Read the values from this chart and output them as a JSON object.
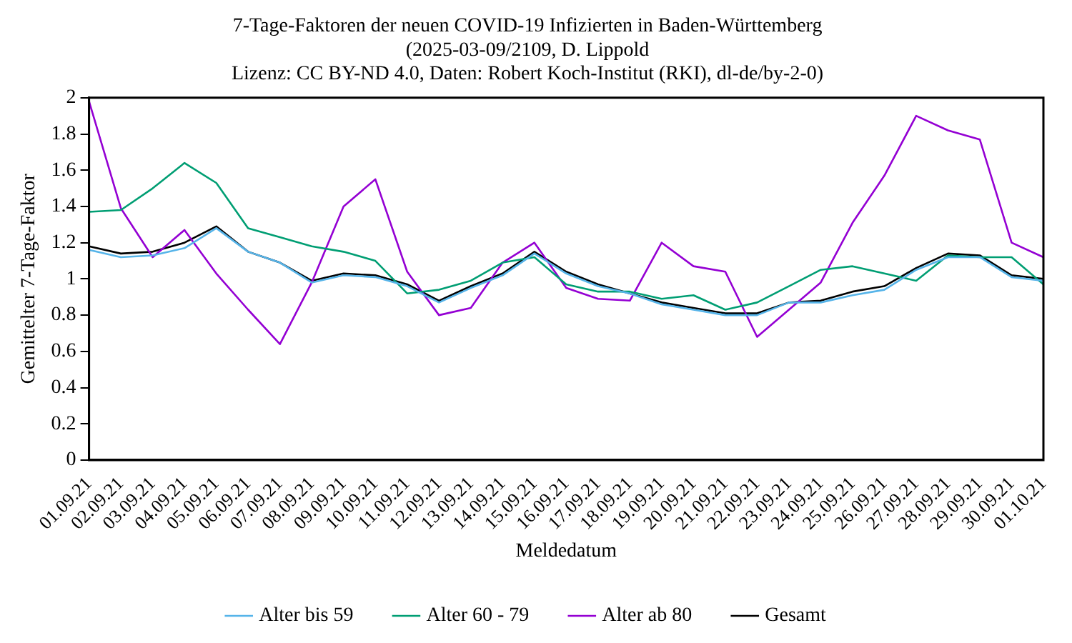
{
  "chart_data": {
    "type": "line",
    "title": [
      "7-Tage-Faktoren der neuen COVID-19 Infizierten in Baden-Württemberg",
      "(2025-03-09/2109, D. Lippold",
      "Lizenz: CC BY-ND 4.0, Daten: Robert Koch-Institut (RKI), dl-de/by-2-0)"
    ],
    "xlabel": "Meldedatum",
    "ylabel": "Gemittelter 7-Tage-Faktor",
    "categories": [
      "01.09.21",
      "02.09.21",
      "03.09.21",
      "04.09.21",
      "05.09.21",
      "06.09.21",
      "07.09.21",
      "08.09.21",
      "09.09.21",
      "10.09.21",
      "11.09.21",
      "12.09.21",
      "13.09.21",
      "14.09.21",
      "15.09.21",
      "16.09.21",
      "17.09.21",
      "18.09.21",
      "19.09.21",
      "20.09.21",
      "21.09.21",
      "22.09.21",
      "23.09.21",
      "24.09.21",
      "25.09.21",
      "26.09.21",
      "27.09.21",
      "28.09.21",
      "29.09.21",
      "30.09.21",
      "01.10.21"
    ],
    "series": [
      {
        "name": "Alter bis 59",
        "color": "#56b4e9",
        "values": [
          1.16,
          1.12,
          1.13,
          1.17,
          1.28,
          1.15,
          1.09,
          0.98,
          1.02,
          1.01,
          0.96,
          0.87,
          0.95,
          1.02,
          1.14,
          1.03,
          0.96,
          0.92,
          0.86,
          0.83,
          0.8,
          0.8,
          0.87,
          0.87,
          0.91,
          0.94,
          1.05,
          1.12,
          1.12,
          1.01,
          0.99
        ]
      },
      {
        "name": "Alter 60 - 79",
        "color": "#009e73",
        "values": [
          1.37,
          1.38,
          1.5,
          1.64,
          1.53,
          1.28,
          1.23,
          1.18,
          1.15,
          1.1,
          0.92,
          0.94,
          0.99,
          1.09,
          1.12,
          0.97,
          0.93,
          0.93,
          0.89,
          0.91,
          0.83,
          0.87,
          0.96,
          1.05,
          1.07,
          1.03,
          0.99,
          1.13,
          1.12,
          1.12,
          0.97
        ]
      },
      {
        "name": "Alter ab 80",
        "color": "#9400d3",
        "values": [
          1.98,
          1.39,
          1.12,
          1.27,
          1.03,
          0.83,
          0.64,
          0.98,
          1.4,
          1.55,
          1.04,
          0.8,
          0.84,
          1.09,
          1.2,
          0.95,
          0.89,
          0.88,
          1.2,
          1.07,
          1.04,
          0.68,
          0.83,
          0.98,
          1.31,
          1.57,
          1.9,
          1.82,
          1.77,
          1.2,
          1.12
        ]
      },
      {
        "name": "Gesamt",
        "color": "#000000",
        "values": [
          1.18,
          1.14,
          1.15,
          1.2,
          1.29,
          1.15,
          1.09,
          0.99,
          1.03,
          1.02,
          0.97,
          0.88,
          0.96,
          1.03,
          1.15,
          1.04,
          0.97,
          0.92,
          0.87,
          0.84,
          0.81,
          0.81,
          0.87,
          0.88,
          0.93,
          0.96,
          1.06,
          1.14,
          1.13,
          1.02,
          1.0
        ]
      }
    ],
    "ylim": [
      0,
      2
    ],
    "yticks": [
      0,
      0.2,
      0.4,
      0.6,
      0.8,
      1,
      1.2,
      1.4,
      1.6,
      1.8,
      2
    ],
    "legend": "bottom",
    "grid": false
  }
}
